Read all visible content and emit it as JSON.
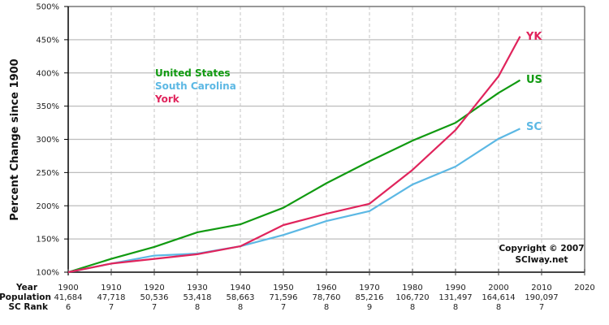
{
  "chart_data": {
    "type": "line",
    "title": "",
    "xlabel": "Year",
    "ylabel": "Percent Change since 1900",
    "xlim": [
      1900,
      2020
    ],
    "ylim": [
      100,
      500
    ],
    "x_ticks": [
      1900,
      1910,
      1920,
      1930,
      1940,
      1950,
      1960,
      1970,
      1980,
      1990,
      2000,
      2010,
      2020
    ],
    "y_ticks": [
      "100%",
      "150%",
      "200%",
      "250%",
      "300%",
      "350%",
      "400%",
      "450%",
      "500%"
    ],
    "y_tick_values": [
      100,
      150,
      200,
      250,
      300,
      350,
      400,
      450,
      500
    ],
    "grid": {
      "horizontal": "solid",
      "vertical": "dashed"
    },
    "legend_position": "upper-left (inside plot)",
    "x": [
      1900,
      1910,
      1920,
      1930,
      1940,
      1950,
      1960,
      1970,
      1980,
      1990,
      2000,
      2005
    ],
    "series": [
      {
        "name": "United States",
        "short": "US",
        "color": "#119a11",
        "values": [
          100,
          120,
          138,
          160,
          172,
          197,
          234,
          267,
          298,
          325,
          370,
          389
        ]
      },
      {
        "name": "South Carolina",
        "short": "SC",
        "color": "#5cb8e4",
        "values": [
          100,
          113,
          125,
          128,
          139,
          156,
          177,
          192,
          232,
          259,
          301,
          316
        ]
      },
      {
        "name": "York",
        "short": "YK",
        "color": "#e0245c",
        "values": [
          100,
          113,
          120,
          127,
          139,
          171,
          188,
          203,
          254,
          314,
          395,
          455
        ]
      }
    ],
    "table": {
      "row_labels": [
        "Year",
        "Population",
        "SC Rank"
      ],
      "years": [
        "1900",
        "1910",
        "1920",
        "1930",
        "1940",
        "1950",
        "1960",
        "1970",
        "1980",
        "1990",
        "2000",
        "2010",
        "2020"
      ],
      "population": [
        "41,684",
        "47,718",
        "50,536",
        "53,418",
        "58,663",
        "71,596",
        "78,760",
        "85,216",
        "106,720",
        "131,497",
        "164,614",
        "190,097",
        ""
      ],
      "sc_rank": [
        "6",
        "7",
        "7",
        "8",
        "8",
        "7",
        "8",
        "9",
        "8",
        "8",
        "8",
        "7",
        ""
      ]
    },
    "annotations": [
      "Copyright © 2007",
      "SCIway.net"
    ]
  },
  "labels": {
    "ylabel": "Percent Change since 1900",
    "row_year": "Year",
    "row_population": "Population",
    "row_rank": "SC Rank",
    "copyright_line1": "Copyright © 2007",
    "copyright_line2": "SCIway.net",
    "legend": [
      "United States",
      "South Carolina",
      "York"
    ],
    "end_labels": [
      "US",
      "SC",
      "YK"
    ]
  }
}
